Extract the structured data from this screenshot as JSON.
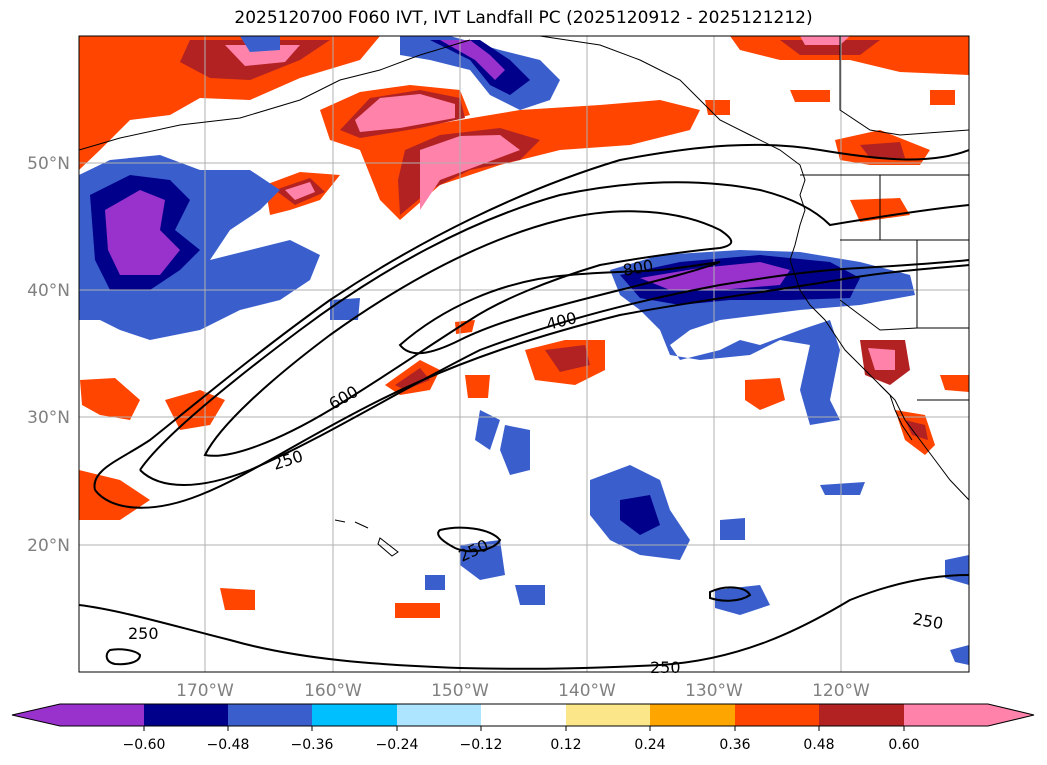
{
  "title": "2025120700 F060 IVT, IVT Landfall PC (2025120912 - 2025121212)",
  "map": {
    "lat_labels": [
      "50°N",
      "40°N",
      "30°N",
      "20°N"
    ],
    "lon_labels": [
      "170°W",
      "160°W",
      "150°W",
      "140°W",
      "130°W",
      "120°W"
    ],
    "contour_labels": [
      "800",
      "400",
      "600",
      "250",
      "250",
      "250",
      "250",
      "250"
    ],
    "contour_levels": [
      250,
      400,
      600,
      800
    ]
  },
  "colorbar": {
    "ticks": [
      "−0.60",
      "−0.48",
      "−0.36",
      "−0.24",
      "−0.12",
      "0.12",
      "0.24",
      "0.36",
      "0.48",
      "0.60"
    ],
    "colors": [
      "#9932cc",
      "#00008b",
      "#3a5fcd",
      "#00bfff",
      "#ade4ff",
      "#ffffff",
      "#fce68a",
      "#ffa500",
      "#ff4500",
      "#b22222",
      "#ff82ab",
      "#ff82ab"
    ]
  },
  "colors": {
    "pc_neg_strong": "#9932cc",
    "pc_neg_2": "#00008b",
    "pc_neg_3": "#3a5fcd",
    "pc_neg_4": "#00bfff",
    "pc_neg_5": "#ade4ff",
    "pc_pos_1": "#fce68a",
    "pc_pos_2": "#ffa500",
    "pc_pos_3": "#ff4500",
    "pc_pos_4": "#b22222",
    "pc_pos_5": "#ff82ab",
    "grid": "#b0b0b0",
    "label_gray": "#808080"
  }
}
